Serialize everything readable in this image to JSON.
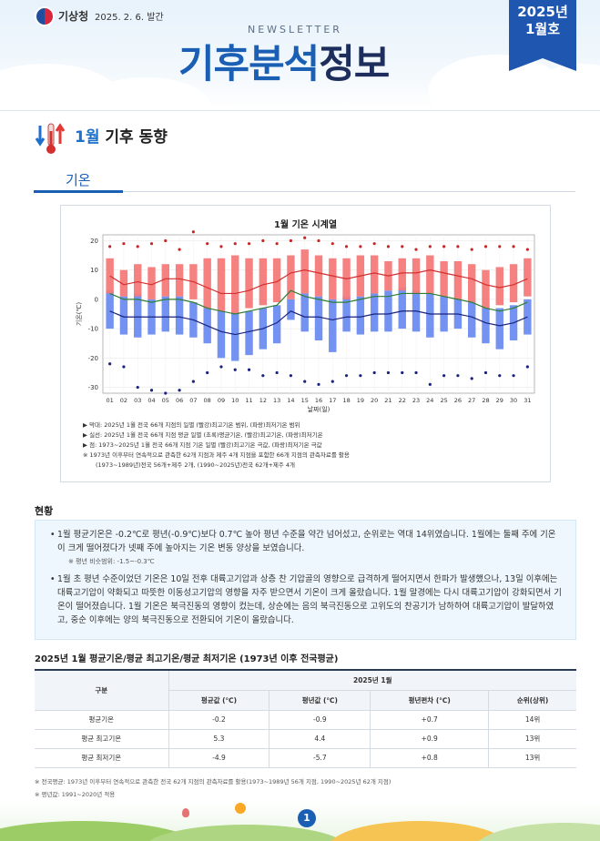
{
  "header": {
    "org": "기상청",
    "pub_date": "2025. 2. 6. 발간",
    "newsletter": "NEWSLETTER",
    "title_part1": "기후분석",
    "title_part2": "정보",
    "issue_year": "2025년",
    "issue_month": "1월호"
  },
  "section": {
    "month": "1월",
    "title": "기후 동향",
    "tab": "기온"
  },
  "chart_data": {
    "type": "bar",
    "title": "1월 기온 시계열",
    "xlabel": "날짜(일)",
    "ylabel": "기온(℃)",
    "ylim": [
      -32,
      22
    ],
    "yticks": [
      20,
      10,
      0,
      -10,
      -20,
      -30
    ],
    "categories": [
      "01",
      "02",
      "03",
      "04",
      "05",
      "06",
      "07",
      "08",
      "09",
      "10",
      "11",
      "12",
      "13",
      "14",
      "15",
      "16",
      "17",
      "18",
      "19",
      "20",
      "21",
      "22",
      "23",
      "24",
      "25",
      "26",
      "27",
      "28",
      "29",
      "30",
      "31"
    ],
    "series": [
      {
        "name": "평년 최고기온 범위 상단",
        "values": [
          14,
          10,
          12,
          11,
          12,
          12,
          12,
          14,
          14,
          15,
          14,
          14,
          14,
          15,
          17,
          15,
          14,
          14,
          15,
          15,
          13,
          14,
          14,
          15,
          13,
          13,
          12,
          10,
          11,
          12,
          14
        ]
      },
      {
        "name": "평년 최고기온 범위 하단",
        "values": [
          2,
          1,
          1,
          0,
          1,
          1,
          0,
          -3,
          -4,
          -5,
          -3,
          -2,
          -1,
          0,
          2,
          1,
          0,
          0,
          1,
          2,
          3,
          3,
          2,
          2,
          1,
          0,
          -1,
          -3,
          -2,
          -1,
          1
        ]
      },
      {
        "name": "평년 최저기온 범위 상단",
        "values": [
          3,
          1,
          2,
          0,
          1,
          1,
          -1,
          -3,
          -4,
          -5,
          -4,
          -3,
          -2,
          0,
          2,
          1,
          0,
          1,
          1,
          2,
          3,
          4,
          3,
          2,
          1,
          0,
          -1,
          -3,
          -3,
          -2,
          0
        ]
      },
      {
        "name": "평년 최저기온 범위 하단",
        "values": [
          -10,
          -12,
          -13,
          -12,
          -11,
          -12,
          -13,
          -15,
          -20,
          -21,
          -19,
          -17,
          -15,
          -7,
          -11,
          -14,
          -18,
          -11,
          -12,
          -11,
          -11,
          -10,
          -11,
          -13,
          -11,
          -10,
          -13,
          -15,
          -17,
          -14,
          -12
        ]
      },
      {
        "name": "실선 평년 최고기온",
        "values": [
          8,
          5,
          6,
          5,
          7,
          7,
          6,
          4,
          2,
          2,
          3,
          5,
          6,
          9,
          10,
          9,
          8,
          7,
          8,
          9,
          8,
          9,
          9,
          10,
          9,
          8,
          7,
          5,
          4,
          5,
          7
        ]
      },
      {
        "name": "실선 평균기온",
        "values": [
          2,
          0,
          0,
          -1,
          0,
          0,
          -1,
          -3,
          -4,
          -5,
          -4,
          -3,
          -2,
          3,
          1,
          0,
          -1,
          -1,
          0,
          1,
          1,
          2,
          2,
          2,
          1,
          0,
          -1,
          -3,
          -4,
          -3,
          -1
        ]
      },
      {
        "name": "실선 최저기온",
        "values": [
          -4,
          -6,
          -6,
          -6,
          -6,
          -6,
          -7,
          -9,
          -11,
          -12,
          -11,
          -10,
          -8,
          -4,
          -6,
          -6,
          -7,
          -6,
          -6,
          -5,
          -5,
          -4,
          -4,
          -5,
          -5,
          -5,
          -6,
          -8,
          -9,
          -8,
          -6
        ]
      },
      {
        "name": "극값 최고기온",
        "values": [
          18,
          19,
          18,
          19,
          20,
          17,
          23,
          19,
          18,
          19,
          19,
          20,
          19,
          20,
          21,
          20,
          19,
          18,
          18,
          19,
          18,
          18,
          17,
          18,
          18,
          18,
          17,
          18,
          18,
          18,
          17
        ]
      },
      {
        "name": "극값 최저기온",
        "values": [
          -22,
          -23,
          -30,
          -31,
          -32,
          -31,
          -28,
          -25,
          -23,
          -24,
          -24,
          -26,
          -25,
          -26,
          -28,
          -29,
          -28,
          -26,
          -26,
          -25,
          -25,
          -25,
          -25,
          -29,
          -26,
          -26,
          -27,
          -25,
          -26,
          -26,
          -23
        ]
      }
    ],
    "legend": [
      "▶ 막대: 2025년 1월 전국 66개 지점의 일별 (빨강)최고기온 범위, (파랑)최저기온 범위",
      "▶ 실선: 2025년 1월 전국 66개 지점 평균 일별 (초록)평균기온, (빨강)최고기온, (파랑)최저기온",
      "▶ 점: 1973~2025년 1월 전국 66개 지점 기온 일별 (빨강)최고기온 극값, (파랑)최저기온 극값",
      "※ 1973년 이후부터 연속적으로 관측한 62개 지점과 제주 4개 지점을 포함한 66개 지점의 관측자료를 활용",
      "(1973~1989년)전국 56개+제주 2개, (1990~2025년)전국 62개+제주 4개"
    ]
  },
  "status": {
    "heading": "현황",
    "p1": "1월 평균기온은 -0.2℃로 평년(-0.9℃)보다 0.7℃ 높아 평년 수준을 약간 넘어섰고, 순위로는 역대 14위였습니다. 1월에는 둘째 주에 기온이 크게 떨어졌다가 넷째 주에 높아지는 기온 변동 양상을 보였습니다.",
    "p1_note": "※ 평년 비슷범위: -1.5~-0.3℃",
    "p2": "1월 초 평년 수준이었던 기온은 10일 전후 대륙고기압과 상층 찬 기압골의 영향으로 급격하게 떨어지면서 한파가 발생했으나, 13일 이후에는 대륙고기압이 약화되고 따뜻한 이동성고기압의 영향을 자주 받으면서 기온이 크게 올랐습니다. 1월 말경에는 다시 대륙고기압이 강화되면서 기온이 떨어졌습니다. 1월 기온은 북극진동의 영향이 컸는데, 상순에는 음의 북극진동으로 고위도의 찬공기가 남하하여 대륙고기압이 발달하였고, 중순 이후에는 양의 북극진동으로 전환되어 기온이 올랐습니다."
  },
  "table": {
    "title": "2025년 1월 평균기온/평균 최고기온/평균 최저기온 (1973년 이후 전국평균)",
    "group_header": "2025년 1월",
    "col_first": "구분",
    "columns": [
      "평균값 (℃)",
      "평년값 (℃)",
      "평년편차 (℃)",
      "순위(상위)"
    ],
    "rows": [
      {
        "label": "평균기온",
        "cells": [
          "-0.2",
          "-0.9",
          "+0.7",
          "14위"
        ]
      },
      {
        "label": "평균 최고기온",
        "cells": [
          "5.3",
          "4.4",
          "+0.9",
          "13위"
        ]
      },
      {
        "label": "평균 최저기온",
        "cells": [
          "-4.9",
          "-5.7",
          "+0.8",
          "13위"
        ]
      }
    ],
    "foot1": "※ 전국평균: 1973년 이후부터 연속적으로 관측한 전국 62개 지점의 관측자료를 활용(1973~1989년 56개 지점, 1990~2025년 62개 지점)",
    "foot2": "※ 평년값: 1991~2020년 적용"
  },
  "page": {
    "number": "1"
  }
}
